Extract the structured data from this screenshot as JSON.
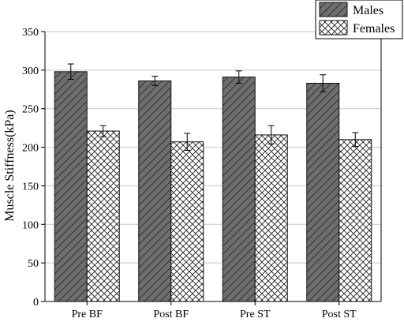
{
  "chart_data": {
    "type": "bar",
    "title": "",
    "xlabel": "",
    "ylabel": "Muscle Stiffness(kPa)",
    "categories": [
      "Pre BF",
      "Post BF",
      "Pre ST",
      "Post ST"
    ],
    "series": [
      {
        "name": "Males",
        "values": [
          298,
          286,
          291,
          283
        ],
        "errors": [
          10,
          6,
          8,
          11
        ],
        "color": "#696969",
        "pattern": "diagonal-hatch"
      },
      {
        "name": "Females",
        "values": [
          221,
          207,
          216,
          210
        ],
        "errors": [
          7,
          11,
          12,
          9
        ],
        "color": "#ffffff",
        "pattern": "crosshatch"
      }
    ],
    "ylim": [
      0,
      350
    ],
    "yticks": [
      "0",
      "50",
      "100",
      "150",
      "200",
      "250",
      "300",
      "350"
    ],
    "grid": "horizontal",
    "legend_position": "top-right"
  }
}
